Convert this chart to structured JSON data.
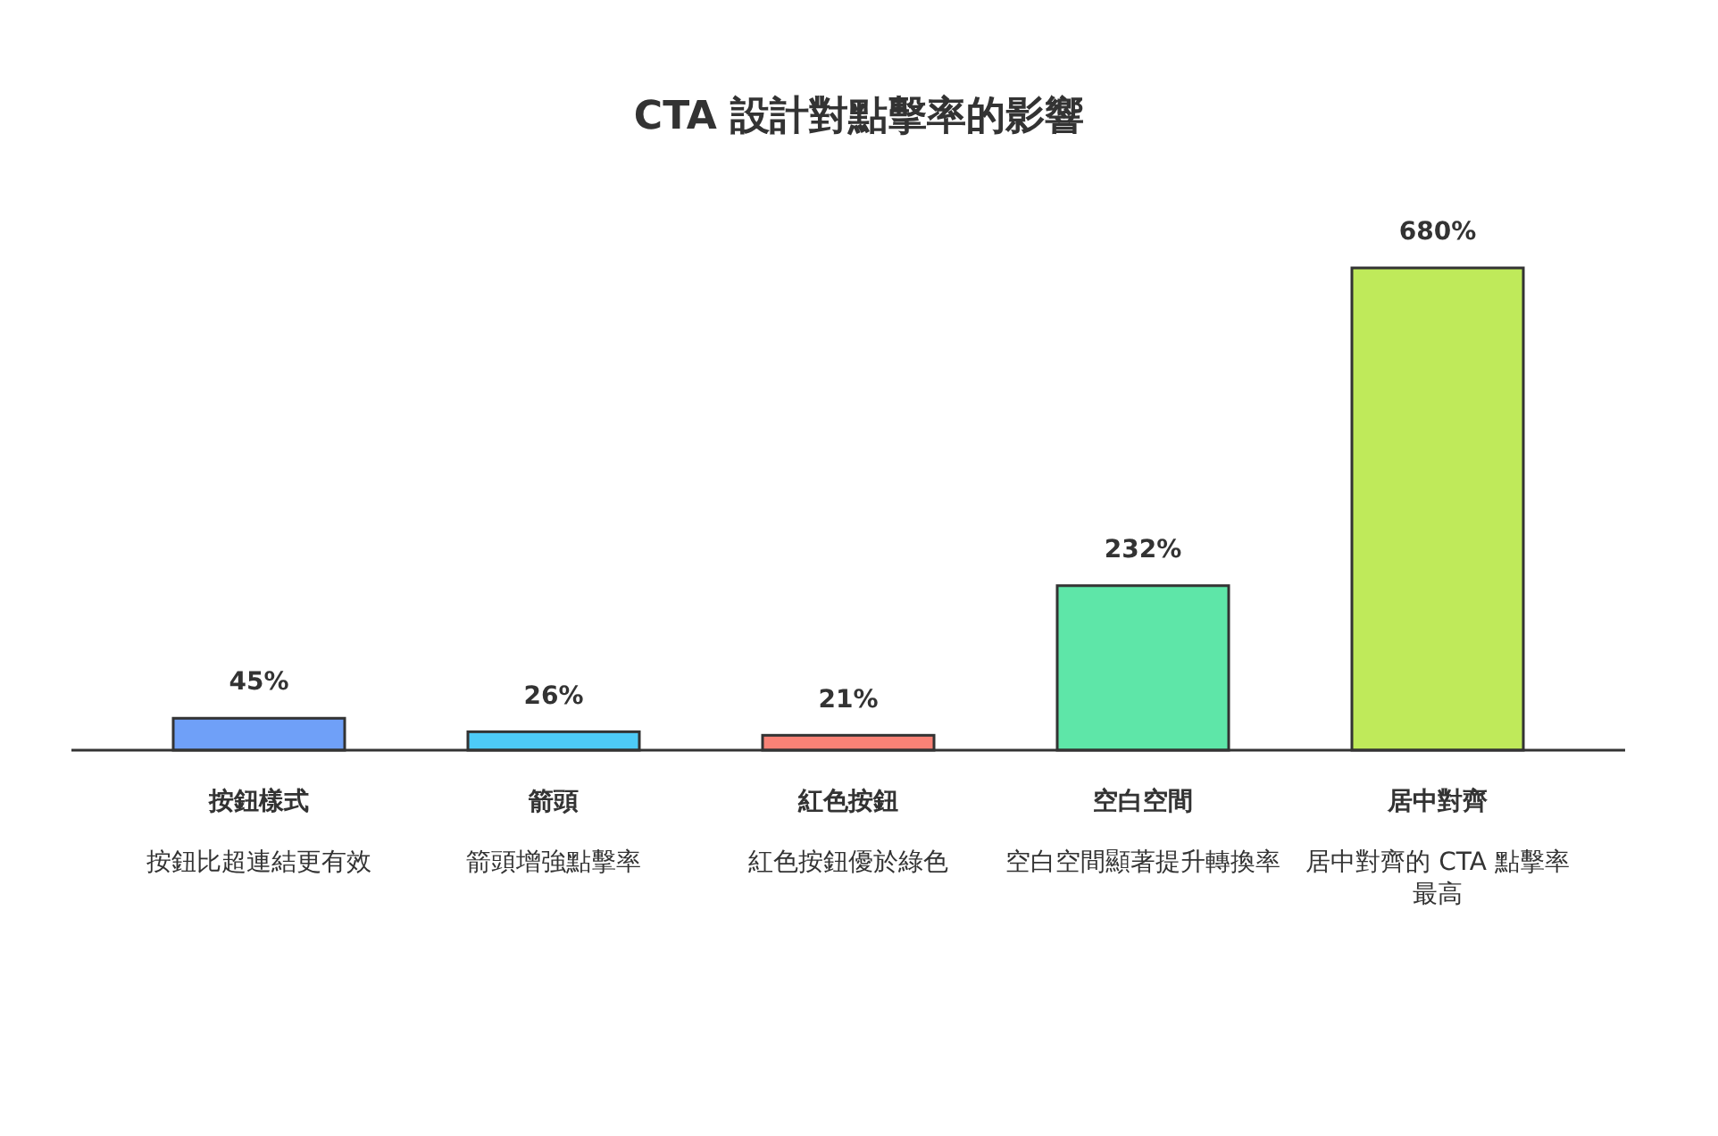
{
  "chart_data": {
    "type": "bar",
    "title": "CTA 設計對點擊率的影響",
    "categories": [
      "按鈕樣式",
      "箭頭",
      "紅色按鈕",
      "空白空間",
      "居中對齊"
    ],
    "values": [
      45,
      26,
      21,
      232,
      680
    ],
    "value_labels": [
      "45%",
      "26%",
      "21%",
      "232%",
      "680%"
    ],
    "colors": [
      "#6fa0f8",
      "#4dcbf7",
      "#f98276",
      "#5ee6a8",
      "#bfea5a"
    ],
    "annotations": [
      "按鈕比超連結更有效",
      "箭頭增強點擊率",
      "紅色按鈕優於綠色",
      "空白空間顯著提升轉換率",
      "居中對齊的 CTA 點擊率最高"
    ],
    "tick_labels": "x"
  }
}
